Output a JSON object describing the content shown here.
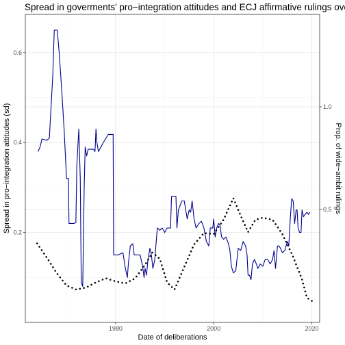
{
  "chart_data": {
    "type": "line",
    "title": "Spread in goverments' pro−integration attitudes and ECJ affirmative rulings over t",
    "xlabel": "Date of deliberations",
    "ylabel_left": "Spread in pro−integration attitudes (sd)",
    "ylabel_right": "Prop. of wide−ambit rulings",
    "xlim": [
      1961.6,
      2021.6
    ],
    "ylim_left": [
      0.0,
      0.685
    ],
    "ylim_right": [
      -0.05,
      1.45
    ],
    "x_ticks": [
      1980,
      2000,
      2020
    ],
    "x_tick_labels": [
      "1980",
      "2000",
      "2020"
    ],
    "y_left_ticks": [
      0.2,
      0.4,
      0.6
    ],
    "y_left_tick_labels": [
      "0.2",
      "0.4",
      "0.6"
    ],
    "y_right_ticks": [
      0.5,
      1.0
    ],
    "y_right_tick_labels": [
      "0.5",
      "1.0"
    ],
    "grid": true,
    "series": [
      {
        "axis": "left",
        "style": "solid",
        "color": "#00008B",
        "points": [
          [
            1964.2,
            0.38
          ],
          [
            1964.6,
            0.39
          ],
          [
            1965.0,
            0.408
          ],
          [
            1966.0,
            0.405
          ],
          [
            1966.5,
            0.41
          ],
          [
            1967.2,
            0.55
          ],
          [
            1967.5,
            0.65
          ],
          [
            1968.1,
            0.65
          ],
          [
            1968.5,
            0.6
          ],
          [
            1969.0,
            0.52
          ],
          [
            1969.5,
            0.43
          ],
          [
            1970.0,
            0.32
          ],
          [
            1970.4,
            0.32
          ],
          [
            1970.5,
            0.22
          ],
          [
            1971.2,
            0.22
          ],
          [
            1971.5,
            0.22
          ],
          [
            1971.9,
            0.222
          ],
          [
            1972.1,
            0.35
          ],
          [
            1972.5,
            0.43
          ],
          [
            1972.8,
            0.32
          ],
          [
            1973.0,
            0.09
          ],
          [
            1973.3,
            0.08
          ],
          [
            1973.6,
            0.3
          ],
          [
            1973.8,
            0.39
          ],
          [
            1974.1,
            0.37
          ],
          [
            1974.4,
            0.385
          ],
          [
            1975.5,
            0.385
          ],
          [
            1975.8,
            0.38
          ],
          [
            1976.0,
            0.43
          ],
          [
            1976.2,
            0.4
          ],
          [
            1976.5,
            0.38
          ],
          [
            1977.0,
            0.39
          ],
          [
            1977.5,
            0.4
          ],
          [
            1978.5,
            0.418
          ],
          [
            1979.5,
            0.418
          ],
          [
            1979.6,
            0.15
          ],
          [
            1980.5,
            0.15
          ],
          [
            1981.5,
            0.155
          ],
          [
            1982.0,
            0.12
          ],
          [
            1982.4,
            0.1
          ],
          [
            1982.6,
            0.13
          ],
          [
            1983.0,
            0.17
          ],
          [
            1983.5,
            0.175
          ],
          [
            1983.8,
            0.15
          ],
          [
            1985.0,
            0.15
          ],
          [
            1985.5,
            0.125
          ],
          [
            1985.8,
            0.1
          ],
          [
            1986.0,
            0.12
          ],
          [
            1986.3,
            0.105
          ],
          [
            1986.6,
            0.14
          ],
          [
            1987.0,
            0.165
          ],
          [
            1987.3,
            0.15
          ],
          [
            1987.6,
            0.12
          ],
          [
            1988.0,
            0.14
          ],
          [
            1988.5,
            0.21
          ],
          [
            1989.0,
            0.205
          ],
          [
            1989.5,
            0.21
          ],
          [
            1990.0,
            0.2
          ],
          [
            1990.5,
            0.21
          ],
          [
            1991.2,
            0.21
          ],
          [
            1991.4,
            0.28
          ],
          [
            1992.3,
            0.28
          ],
          [
            1992.5,
            0.21
          ],
          [
            1992.8,
            0.25
          ],
          [
            1993.5,
            0.27
          ],
          [
            1994.0,
            0.27
          ],
          [
            1994.3,
            0.25
          ],
          [
            1994.6,
            0.23
          ],
          [
            1995.0,
            0.25
          ],
          [
            1995.3,
            0.245
          ],
          [
            1995.6,
            0.27
          ],
          [
            1996.0,
            0.23
          ],
          [
            1996.4,
            0.21
          ],
          [
            1997.0,
            0.22
          ],
          [
            1997.5,
            0.225
          ],
          [
            1998.0,
            0.21
          ],
          [
            1998.5,
            0.18
          ],
          [
            1999.0,
            0.17
          ],
          [
            1999.3,
            0.21
          ],
          [
            1999.8,
            0.21
          ],
          [
            2000.0,
            0.23
          ],
          [
            2000.3,
            0.19
          ],
          [
            2000.6,
            0.21
          ],
          [
            2001.0,
            0.22
          ],
          [
            2001.3,
            0.215
          ],
          [
            2001.6,
            0.19
          ],
          [
            2002.0,
            0.185
          ],
          [
            2002.5,
            0.19
          ],
          [
            2003.0,
            0.175
          ],
          [
            2003.3,
            0.16
          ],
          [
            2003.6,
            0.125
          ],
          [
            2004.0,
            0.11
          ],
          [
            2004.5,
            0.115
          ],
          [
            2005.0,
            0.165
          ],
          [
            2005.5,
            0.16
          ],
          [
            2006.0,
            0.18
          ],
          [
            2006.5,
            0.17
          ],
          [
            2006.8,
            0.15
          ],
          [
            2007.0,
            0.105
          ],
          [
            2007.3,
            0.105
          ],
          [
            2007.6,
            0.095
          ],
          [
            2007.9,
            0.13
          ],
          [
            2008.3,
            0.14
          ],
          [
            2008.7,
            0.13
          ],
          [
            2009.0,
            0.12
          ],
          [
            2009.5,
            0.13
          ],
          [
            2010.0,
            0.125
          ],
          [
            2010.5,
            0.14
          ],
          [
            2011.0,
            0.14
          ],
          [
            2011.5,
            0.13
          ],
          [
            2012.0,
            0.14
          ],
          [
            2012.3,
            0.16
          ],
          [
            2012.6,
            0.12
          ],
          [
            2013.0,
            0.17
          ],
          [
            2013.3,
            0.17
          ],
          [
            2013.6,
            0.165
          ],
          [
            2014.0,
            0.155
          ],
          [
            2014.5,
            0.16
          ],
          [
            2015.0,
            0.18
          ],
          [
            2015.3,
            0.17
          ],
          [
            2015.6,
            0.23
          ],
          [
            2015.9,
            0.275
          ],
          [
            2016.2,
            0.27
          ],
          [
            2016.5,
            0.22
          ],
          [
            2016.8,
            0.25
          ],
          [
            2017.0,
            0.25
          ],
          [
            2017.2,
            0.21
          ],
          [
            2017.5,
            0.2
          ],
          [
            2017.8,
            0.2
          ],
          [
            2018.0,
            0.25
          ],
          [
            2018.3,
            0.235
          ],
          [
            2018.6,
            0.24
          ],
          [
            2019.0,
            0.245
          ],
          [
            2019.3,
            0.24
          ],
          [
            2019.6,
            0.245
          ]
        ]
      },
      {
        "axis": "right",
        "style": "dotted",
        "color": "#000000",
        "points": [
          [
            1964.0,
            0.335
          ],
          [
            1966.0,
            0.265
          ],
          [
            1968.0,
            0.19
          ],
          [
            1970.0,
            0.13
          ],
          [
            1972.0,
            0.11
          ],
          [
            1974.0,
            0.12
          ],
          [
            1976.0,
            0.145
          ],
          [
            1978.0,
            0.165
          ],
          [
            1980.0,
            0.15
          ],
          [
            1982.0,
            0.14
          ],
          [
            1984.0,
            0.165
          ],
          [
            1986.0,
            0.23
          ],
          [
            1987.5,
            0.29
          ],
          [
            1989.0,
            0.26
          ],
          [
            1990.5,
            0.145
          ],
          [
            1992.0,
            0.11
          ],
          [
            1994.0,
            0.22
          ],
          [
            1996.0,
            0.33
          ],
          [
            1998.0,
            0.385
          ],
          [
            2000.0,
            0.38
          ],
          [
            2002.0,
            0.45
          ],
          [
            2004.0,
            0.555
          ],
          [
            2005.5,
            0.47
          ],
          [
            2007.0,
            0.39
          ],
          [
            2008.5,
            0.45
          ],
          [
            2010.0,
            0.46
          ],
          [
            2012.0,
            0.45
          ],
          [
            2014.0,
            0.38
          ],
          [
            2016.0,
            0.28
          ],
          [
            2018.0,
            0.16
          ],
          [
            2019.0,
            0.07
          ],
          [
            2020.0,
            0.055
          ]
        ]
      }
    ]
  }
}
